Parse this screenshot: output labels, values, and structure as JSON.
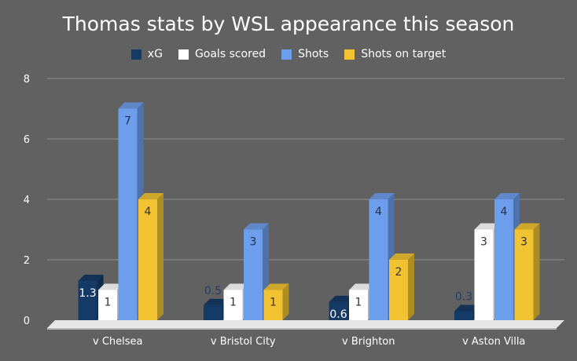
{
  "chart_data": {
    "type": "bar",
    "title": "Thomas stats by WSL appearance this season",
    "categories": [
      "v Chelsea",
      "v Bristol City",
      "v Brighton",
      "v Aston Villa"
    ],
    "series": [
      {
        "name": "xG",
        "values": [
          1.3,
          0.5,
          0.6,
          0.3
        ],
        "labels": [
          "1.3",
          "0.5",
          "0.6",
          "0.3"
        ],
        "color": "#163a66",
        "label_color": "#ffffff"
      },
      {
        "name": "Goals scored",
        "values": [
          1,
          1,
          1,
          3
        ],
        "labels": [
          "1",
          "1",
          "1",
          "3"
        ],
        "color": "#ffffff",
        "label_color": "#333333"
      },
      {
        "name": "Shots",
        "values": [
          7,
          3,
          4,
          4
        ],
        "labels": [
          "7",
          "3",
          "4",
          "4"
        ],
        "color": "#6d9eeb",
        "label_color": "#1f2f55"
      },
      {
        "name": "Shots on target",
        "values": [
          4,
          1,
          2,
          3
        ],
        "labels": [
          "4",
          "1",
          "2",
          "3"
        ],
        "color": "#f1c232",
        "label_color": "#333333"
      }
    ],
    "yticks": [
      "0",
      "2",
      "4",
      "6",
      "8"
    ],
    "ylim": [
      0,
      8
    ],
    "grid": true,
    "legend_position": "top"
  }
}
